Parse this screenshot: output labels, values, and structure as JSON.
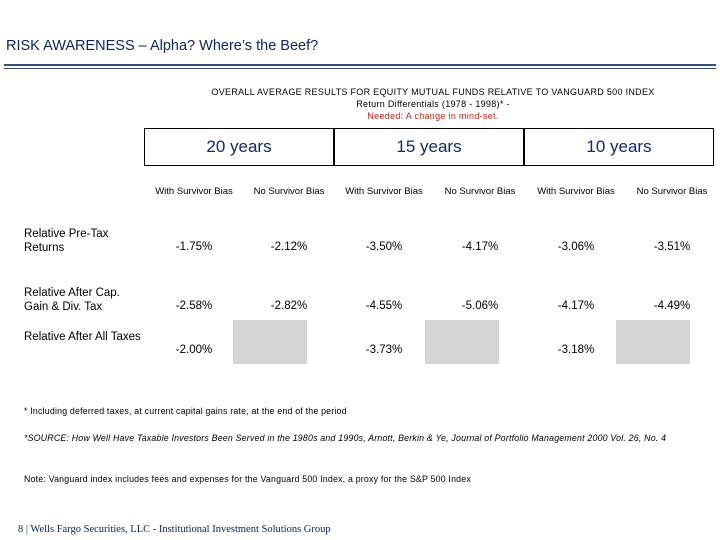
{
  "header": {
    "title": "RISK AWARENESS – Alpha? Where’s the Beef?"
  },
  "subtitle": {
    "line1": "OVERALL AVERAGE RESULTS FOR EQUITY MUTUAL FUNDS RELATIVE TO VANGUARD 500 INDEX",
    "line2": "Return Differentials (1978 - 1998)* -",
    "line3": "Needed: A change in mind-set."
  },
  "table": {
    "periods": [
      "20 years",
      "15 years",
      "10 years"
    ],
    "col_headers": [
      "With Survivor Bias",
      "No Survivor Bias",
      "With Survivor Bias",
      "No Survivor Bias",
      "With Survivor Bias",
      "No Survivor Bias"
    ],
    "rows": [
      {
        "label": "Relative Pre-Tax Returns",
        "values": [
          "-1.75%",
          "-2.12%",
          "-3.50%",
          "-4.17%",
          "-3.06%",
          "-3.51%"
        ]
      },
      {
        "label": "Relative After Cap. Gain & Div. Tax",
        "values": [
          "-2.58%",
          "-2.82%",
          "-4.55%",
          "-5.06%",
          "-4.17%",
          "-4.49%"
        ]
      },
      {
        "label": "Relative After All Taxes",
        "values": [
          "-2.00%",
          "",
          "-3.73%",
          "",
          "-3.18%",
          ""
        ]
      }
    ]
  },
  "footnotes": {
    "note1": "* Including deferred taxes, at current capital gains rate, at the end of the period",
    "source": "*SOURCE: How Well Have Taxable Investors Been Served in the 1980s and 1990s, Arnott, Berkin & Ye, Journal of Portfolio Management 2000 Vol. 26, No. 4",
    "note2": "Note: Vanguard index includes fees and expenses for the Vanguard 500 Index, a proxy for the S&P 500 Index"
  },
  "footer": {
    "page": "8 |  Wells Fargo Securities, LLC - Institutional Investment Solutions Group"
  }
}
